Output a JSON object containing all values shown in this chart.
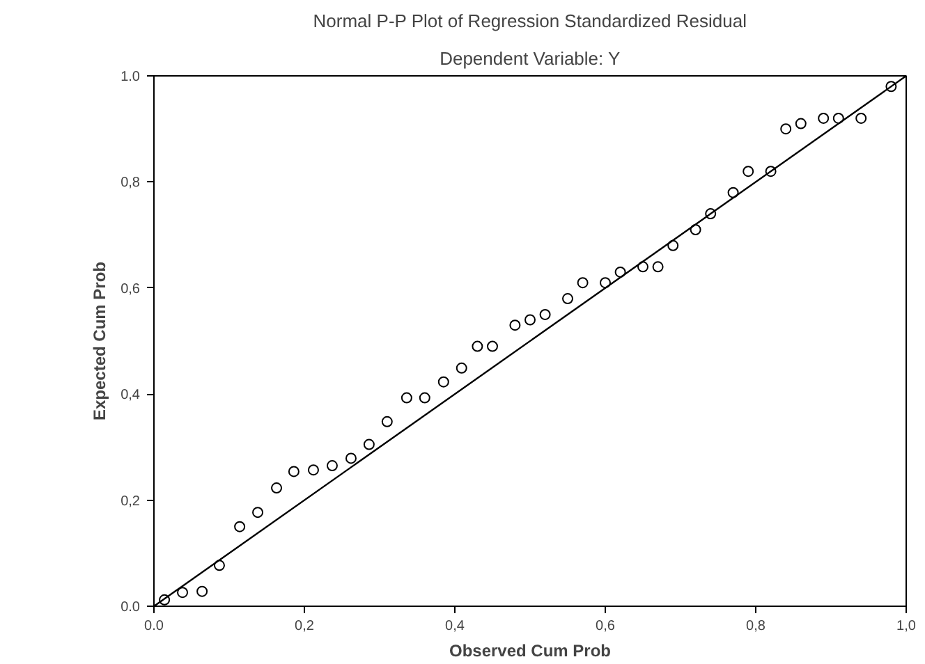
{
  "chart_data": {
    "type": "scatter",
    "title": "Normal P-P Plot of Regression Standardized Residual",
    "subtitle": "Dependent Variable: Y",
    "xlabel": "Observed Cum Prob",
    "ylabel": "Expected Cum Prob",
    "grid": false,
    "xlim": [
      0,
      1
    ],
    "ylim": [
      0,
      1
    ],
    "xticks": [
      {
        "value": 0,
        "label": "0.0"
      },
      {
        "value": 0.2,
        "label": "0,2"
      },
      {
        "value": 0.4,
        "label": "0,4"
      },
      {
        "value": 0.6,
        "label": "0,6"
      },
      {
        "value": 0.8,
        "label": "0,8"
      },
      {
        "value": 1,
        "label": "1,0"
      }
    ],
    "yticks": [
      {
        "value": 0,
        "label": "0.0"
      },
      {
        "value": 0.2,
        "label": "0,2"
      },
      {
        "value": 0.4,
        "label": "0,4"
      },
      {
        "value": 0.6,
        "label": "0,6"
      },
      {
        "value": 0.8,
        "label": "0,8"
      },
      {
        "value": 1,
        "label": "1.0"
      }
    ],
    "series": [
      {
        "marker": "circle",
        "color": "#000000",
        "x": [
          0.014,
          0.038,
          0.064,
          0.087,
          0.114,
          0.138,
          0.163,
          0.186,
          0.212,
          0.237,
          0.262,
          0.286,
          0.31,
          0.336,
          0.36,
          0.385,
          0.409,
          0.43,
          0.45,
          0.48,
          0.5,
          0.52,
          0.55,
          0.57,
          0.6,
          0.62,
          0.65,
          0.67,
          0.69,
          0.72,
          0.74,
          0.77,
          0.79,
          0.82,
          0.84,
          0.86,
          0.89,
          0.91,
          0.94,
          0.98
        ],
        "values": [
          0.012,
          0.026,
          0.028,
          0.077,
          0.15,
          0.177,
          0.223,
          0.254,
          0.257,
          0.265,
          0.279,
          0.305,
          0.348,
          0.393,
          0.393,
          0.423,
          0.449,
          0.49,
          0.49,
          0.53,
          0.54,
          0.55,
          0.58,
          0.61,
          0.61,
          0.63,
          0.64,
          0.64,
          0.68,
          0.71,
          0.74,
          0.78,
          0.82,
          0.82,
          0.9,
          0.91,
          0.92,
          0.92,
          0.92,
          0.98
        ]
      },
      {
        "type": "line",
        "color": "#000000",
        "x": [
          0,
          1
        ],
        "values": [
          0,
          1
        ]
      }
    ]
  }
}
